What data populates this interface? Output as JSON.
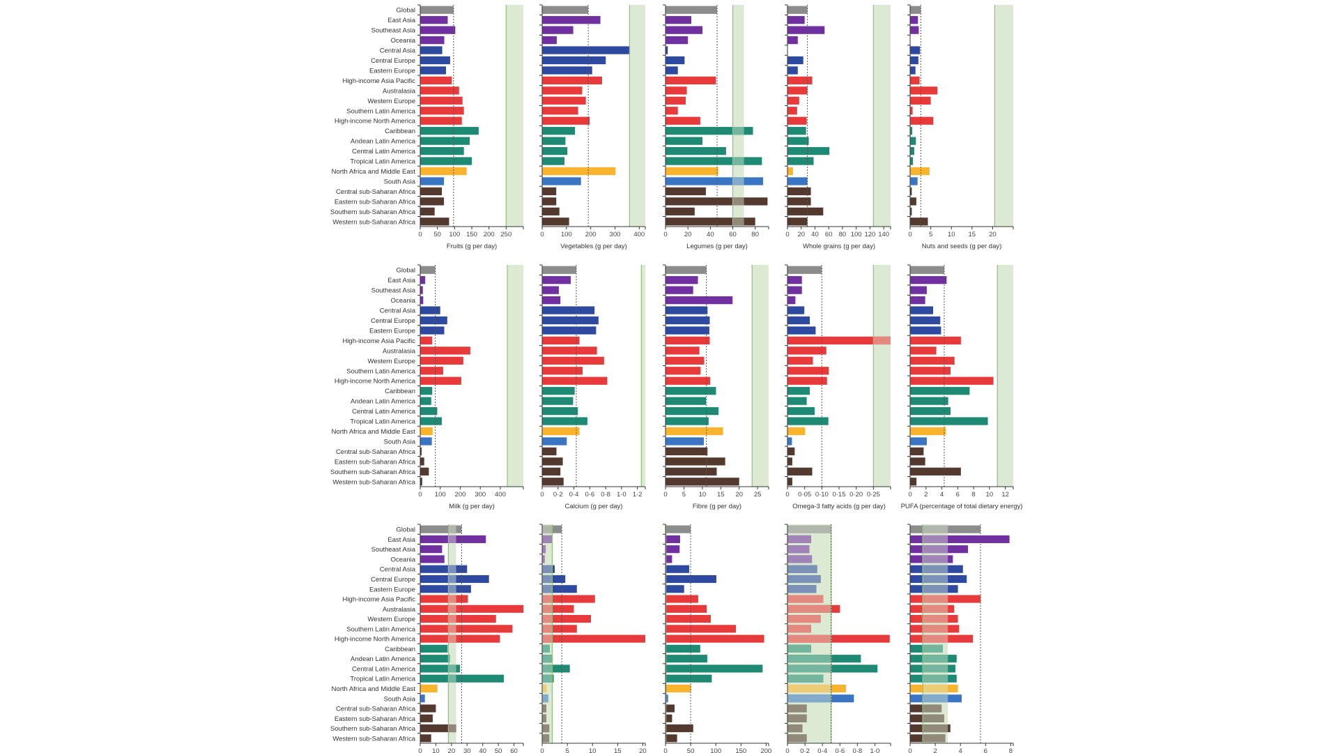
{
  "regions": [
    "Global",
    "East Asia",
    "Southeast Asia",
    "Oceania",
    "Central Asia",
    "Central Europe",
    "Eastern Europe",
    "High-income Asia Pacific",
    "Australasia",
    "Western Europe",
    "Southern Latin America",
    "High-income North America",
    "Caribbean",
    "Andean Latin America",
    "Central Latin America",
    "Tropical Latin America",
    "North Africa and Middle East",
    "South Asia",
    "Central sub-Saharan Africa",
    "Eastern sub-Saharan Africa",
    "Southern sub-Saharan Africa",
    "Western sub-Saharan Africa"
  ],
  "region_groups": [
    "global",
    "asia",
    "asia",
    "asia",
    "ceeca",
    "ceeca",
    "ceeca",
    "highincome",
    "highincome",
    "highincome",
    "highincome",
    "highincome",
    "latam",
    "latam",
    "latam",
    "latam",
    "mena",
    "southasia",
    "ssa",
    "ssa",
    "ssa",
    "ssa"
  ],
  "colors": {
    "global": "#8c8c8c",
    "asia": "#7030a0",
    "ceeca": "#2e49a0",
    "highincome": "#e8393b",
    "latam": "#1f8a74",
    "mena": "#f9b32c",
    "southasia": "#3a75c4",
    "ssa": "#54392f",
    "optimal_band": "#dcead3",
    "optimal_line": "#8fbf7a",
    "global_line": "#555555"
  },
  "chart_data": [
    {
      "type": "bar",
      "orientation": "horizontal",
      "xlabel": "Fruits (g per day)",
      "ticks": [
        0,
        50,
        100,
        150,
        200,
        250
      ],
      "tick_labels": [
        "0",
        "50",
        "100",
        "150",
        "200",
        "250"
      ],
      "xlim": [
        0,
        300
      ],
      "optimal_range": [
        250,
        300
      ],
      "global_ref": 97,
      "values": [
        97,
        80,
        102,
        70,
        64,
        87,
        75,
        92,
        113,
        123,
        127,
        121,
        170,
        144,
        127,
        150,
        135,
        69,
        63,
        69,
        42,
        84
      ]
    },
    {
      "type": "bar",
      "orientation": "horizontal",
      "xlabel": "Vegetables (g per day)",
      "ticks": [
        0,
        100,
        200,
        300,
        400
      ],
      "tick_labels": [
        "0",
        "100",
        "200",
        "300",
        "400"
      ],
      "xlim": [
        0,
        425
      ],
      "optimal_range": [
        360,
        425
      ],
      "global_ref": 190,
      "values": [
        190,
        240,
        128,
        60,
        362,
        262,
        206,
        247,
        165,
        180,
        148,
        196,
        135,
        96,
        104,
        92,
        302,
        160,
        58,
        58,
        71,
        111
      ]
    },
    {
      "type": "bar",
      "orientation": "horizontal",
      "xlabel": "Legumes (g per day)",
      "ticks": [
        0,
        20,
        40,
        60,
        80
      ],
      "tick_labels": [
        "0",
        "20",
        "40",
        "60",
        "80"
      ],
      "xlim": [
        0,
        92
      ],
      "optimal_range": [
        60,
        70
      ],
      "global_ref": 46,
      "values": [
        46,
        23,
        33,
        20,
        2,
        17,
        11,
        45,
        19,
        18,
        11,
        31,
        78,
        33,
        54,
        86,
        47,
        87,
        36,
        91,
        26,
        80
      ]
    },
    {
      "type": "bar",
      "orientation": "horizontal",
      "xlabel": "Whole grains (g per day)",
      "ticks": [
        0,
        20,
        40,
        60,
        80,
        100,
        120,
        140
      ],
      "tick_labels": [
        "0",
        "20",
        "40",
        "60",
        "80",
        "100",
        "120",
        "140"
      ],
      "xlim": [
        0,
        150
      ],
      "optimal_range": [
        125,
        150
      ],
      "global_ref": 29,
      "values": [
        29,
        25,
        54,
        15,
        0,
        23,
        15,
        36,
        29,
        17,
        14,
        28,
        27,
        31,
        61,
        38,
        8,
        29,
        34,
        34,
        52,
        29
      ]
    },
    {
      "type": "bar",
      "orientation": "horizontal",
      "xlabel": "Nuts and seeds (g per day)",
      "ticks": [
        0,
        5,
        10,
        15,
        20
      ],
      "tick_labels": [
        "0",
        "5",
        "10",
        "15",
        "20"
      ],
      "xlim": [
        0,
        25
      ],
      "optimal_range": [
        20.5,
        25
      ],
      "global_ref": 2.6,
      "values": [
        2.6,
        1.9,
        2.1,
        0,
        2.4,
        2.0,
        1.3,
        2.3,
        6.6,
        5.0,
        0.6,
        5.6,
        0.5,
        1.4,
        1.0,
        0.7,
        4.7,
        1.8,
        0.4,
        1.5,
        0.4,
        4.3
      ]
    },
    {
      "type": "bar",
      "orientation": "horizontal",
      "xlabel": "Milk (g per day)",
      "ticks": [
        0,
        100,
        200,
        300,
        400
      ],
      "tick_labels": [
        "0",
        "100",
        "200",
        "300",
        "400"
      ],
      "xlim": [
        0,
        515
      ],
      "optimal_range": [
        435,
        515
      ],
      "global_ref": 75,
      "values": [
        75,
        25,
        13,
        15,
        100,
        135,
        120,
        60,
        250,
        215,
        115,
        205,
        60,
        55,
        85,
        108,
        62,
        58,
        7,
        20,
        43,
        10
      ]
    },
    {
      "type": "bar",
      "orientation": "horizontal",
      "xlabel": "Calcium (g per day)",
      "ticks": [
        0,
        0.2,
        0.4,
        0.6,
        0.8,
        1.0,
        1.2
      ],
      "tick_labels": [
        "0",
        "0·2",
        "0·4",
        "0·6",
        "0·8",
        "1·0",
        "1·2"
      ],
      "xlim": [
        0,
        1.3
      ],
      "optimal_range": [
        1.25,
        1.3
      ],
      "global_ref": 0.43,
      "values": [
        0.43,
        0.36,
        0.21,
        0.23,
        0.66,
        0.71,
        0.68,
        0.47,
        0.69,
        0.78,
        0.51,
        0.82,
        0.41,
        0.39,
        0.45,
        0.57,
        0.47,
        0.31,
        0.18,
        0.26,
        0.23,
        0.27
      ]
    },
    {
      "type": "bar",
      "orientation": "horizontal",
      "xlabel": "Fibre (g per day)",
      "ticks": [
        0,
        5,
        10,
        15,
        20,
        25
      ],
      "tick_labels": [
        "0",
        "5",
        "10",
        "15",
        "20",
        "25"
      ],
      "xlim": [
        0,
        28
      ],
      "optimal_range": [
        23.5,
        28
      ],
      "global_ref": 11.1,
      "values": [
        11.1,
        8.8,
        7.5,
        18.2,
        11.4,
        12.0,
        11.9,
        12.0,
        9.2,
        10.5,
        9.5,
        12.1,
        13.7,
        11.0,
        14.4,
        11.7,
        15.6,
        10.4,
        11.4,
        16.2,
        13.9,
        20.0
      ]
    },
    {
      "type": "bar",
      "orientation": "horizontal",
      "xlabel": "Omega-3 fatty acids (g per day)",
      "ticks": [
        0,
        0.05,
        0.1,
        0.15,
        0.2,
        0.25
      ],
      "tick_labels": [
        "0",
        "0·05",
        "0·10",
        "0·15",
        "0·20",
        "0·25"
      ],
      "xlim": [
        0,
        0.3
      ],
      "optimal_range": [
        0.25,
        0.3
      ],
      "global_ref": 0.1,
      "values": [
        0.1,
        0.042,
        0.042,
        0.023,
        0.049,
        0.065,
        0.082,
        0.3,
        0.113,
        0.074,
        0.12,
        0.115,
        0.065,
        0.056,
        0.079,
        0.119,
        0.051,
        0.013,
        0.021,
        0.014,
        0.072,
        0.014
      ]
    },
    {
      "type": "bar",
      "orientation": "horizontal",
      "xlabel": "PUFA (percentage of total dietary energy)",
      "ticks": [
        0,
        2,
        4,
        6,
        8,
        10,
        12
      ],
      "tick_labels": [
        "0",
        "2",
        "4",
        "6",
        "8",
        "10",
        "12"
      ],
      "xlim": [
        0,
        13
      ],
      "optimal_range": [
        11,
        13
      ],
      "global_ref": 4.3,
      "values": [
        4.3,
        4.6,
        2.1,
        1.9,
        2.9,
        3.8,
        3.9,
        6.4,
        3.3,
        5.6,
        5.1,
        10.5,
        7.5,
        4.8,
        5.1,
        9.8,
        4.5,
        2.1,
        1.7,
        1.9,
        6.4,
        0.8
      ]
    },
    {
      "type": "bar",
      "orientation": "horizontal",
      "xlabel": "",
      "ticks": [
        0,
        10,
        20,
        30,
        40,
        50,
        60
      ],
      "tick_labels": [
        "0",
        "10",
        "20",
        "30",
        "40",
        "50",
        "60"
      ],
      "xlim": [
        0,
        66
      ],
      "optimal_range": [
        18,
        23
      ],
      "global_ref": 26.5,
      "values": [
        26.5,
        42,
        14,
        15.5,
        30,
        44,
        32.5,
        30.5,
        66,
        48.5,
        59,
        51,
        17.5,
        19,
        25.5,
        53.5,
        11,
        3,
        10,
        8,
        23,
        7
      ]
    },
    {
      "type": "bar",
      "orientation": "horizontal",
      "xlabel": "",
      "ticks": [
        0,
        5,
        10,
        15,
        20
      ],
      "tick_labels": [
        "0",
        "5",
        "10",
        "15",
        "20"
      ],
      "xlim": [
        0,
        20.5
      ],
      "optimal_range": [
        0,
        2
      ],
      "global_ref": 3.9,
      "values": [
        3.9,
        2.0,
        0.7,
        0.5,
        2.5,
        4.6,
        6.9,
        10.5,
        6.3,
        9.7,
        6.9,
        20.5,
        1.5,
        2.1,
        5.5,
        2.3,
        0.9,
        1.2,
        0.8,
        0.8,
        1.4,
        1.4
      ]
    },
    {
      "type": "bar",
      "orientation": "horizontal",
      "xlabel": "",
      "ticks": [
        0,
        50,
        100,
        150,
        200
      ],
      "tick_labels": [
        "0",
        "50",
        "100",
        "150",
        "200"
      ],
      "xlim": [
        0,
        205
      ],
      "optimal_range": [
        0,
        1
      ],
      "global_ref": 50,
      "values": [
        50,
        29,
        28,
        13,
        47,
        101,
        37,
        65,
        82,
        90,
        140,
        196,
        69,
        83,
        193,
        92,
        51,
        5,
        18,
        13,
        55,
        23
      ]
    },
    {
      "type": "bar",
      "orientation": "horizontal",
      "xlabel": "",
      "ticks": [
        0,
        0.2,
        0.4,
        0.6,
        0.8,
        1.0
      ],
      "tick_labels": [
        "0",
        "0·2",
        "0·4",
        "0·6",
        "0·8",
        "1·0"
      ],
      "xlim": [
        0,
        1.18
      ],
      "optimal_range": [
        0,
        0.5
      ],
      "global_ref": 0.5,
      "values": [
        0.5,
        0.27,
        0.25,
        0.28,
        0.34,
        0.38,
        0.33,
        0.41,
        0.6,
        0.38,
        0.27,
        1.17,
        0.27,
        0.84,
        1.03,
        0.41,
        0.67,
        0.76,
        0.22,
        0.22,
        0.17,
        0.22
      ]
    },
    {
      "type": "bar",
      "orientation": "horizontal",
      "xlabel": "",
      "ticks": [
        0,
        2,
        4,
        6,
        8
      ],
      "tick_labels": [
        "0",
        "2",
        "4",
        "6",
        "8"
      ],
      "xlim": [
        0,
        8.2
      ],
      "optimal_range": [
        1,
        3
      ],
      "global_ref": 5.6,
      "values": [
        5.6,
        7.9,
        4.6,
        3.4,
        4.2,
        4.5,
        3.8,
        5.6,
        3.5,
        3.8,
        3.9,
        5.0,
        2.6,
        3.7,
        3.6,
        3.7,
        3.8,
        4.1,
        2.5,
        2.7,
        3.2,
        2.8
      ]
    }
  ]
}
